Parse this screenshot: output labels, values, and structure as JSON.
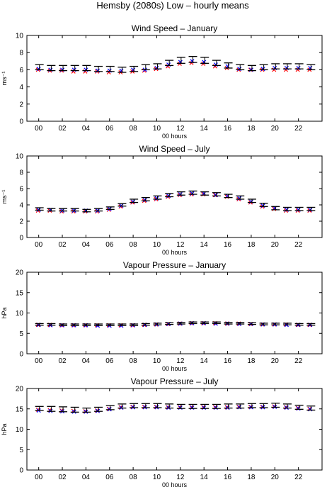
{
  "title": "Hemsby (2080s) Low – hourly means",
  "colors": {
    "series_a": "#ff0000",
    "series_b": "#0000ff",
    "error_bar": "#000000",
    "axes": "#000000",
    "background": "#ffffff"
  },
  "chart_data": [
    {
      "type": "scatter",
      "title": "Wind Speed – January",
      "xlabel": "00 hours",
      "ylabel": "ms⁻¹",
      "x_tick_labels": [
        "00",
        "02",
        "04",
        "06",
        "08",
        "10",
        "12",
        "14",
        "16",
        "18",
        "20",
        "22"
      ],
      "y_tick_labels": [
        "0",
        "2",
        "4",
        "6",
        "8",
        "10"
      ],
      "xlim": [
        -1,
        24
      ],
      "ylim": [
        0,
        10
      ],
      "hours": [
        0,
        1,
        2,
        3,
        4,
        5,
        6,
        7,
        8,
        9,
        10,
        11,
        12,
        13,
        14,
        15,
        16,
        17,
        18,
        19,
        20,
        21,
        22,
        23
      ],
      "series": [
        {
          "color": "red",
          "marker": "x",
          "values": [
            6.0,
            5.9,
            5.9,
            5.8,
            5.8,
            5.8,
            5.7,
            5.7,
            5.8,
            5.9,
            6.1,
            6.4,
            6.7,
            6.8,
            6.7,
            6.4,
            6.2,
            6.0,
            6.0,
            6.0,
            6.0,
            6.0,
            6.0,
            6.0
          ]
        },
        {
          "color": "blue",
          "marker": "x",
          "values": [
            6.1,
            6.0,
            6.0,
            6.0,
            6.0,
            5.9,
            5.9,
            5.9,
            6.0,
            6.0,
            6.2,
            6.6,
            6.9,
            7.0,
            6.9,
            6.6,
            6.4,
            6.1,
            6.0,
            6.1,
            6.2,
            6.2,
            6.2,
            6.2
          ]
        },
        {
          "type": "errorbar",
          "color": "black",
          "values": [
            6.3,
            6.2,
            6.2,
            6.2,
            6.2,
            6.1,
            6.1,
            6.0,
            6.1,
            6.3,
            6.4,
            6.8,
            7.1,
            7.2,
            7.1,
            6.8,
            6.5,
            6.3,
            6.2,
            6.3,
            6.4,
            6.4,
            6.4,
            6.3
          ],
          "error": [
            0.3,
            0.3,
            0.3,
            0.3,
            0.3,
            0.3,
            0.3,
            0.3,
            0.3,
            0.3,
            0.3,
            0.3,
            0.35,
            0.35,
            0.35,
            0.3,
            0.3,
            0.3,
            0.3,
            0.3,
            0.3,
            0.3,
            0.3,
            0.3
          ]
        }
      ]
    },
    {
      "type": "scatter",
      "title": "Wind Speed – July",
      "xlabel": "00 hours",
      "ylabel": "ms⁻¹",
      "x_tick_labels": [
        "00",
        "02",
        "04",
        "06",
        "08",
        "10",
        "12",
        "14",
        "16",
        "18",
        "20",
        "22"
      ],
      "y_tick_labels": [
        "0",
        "2",
        "4",
        "6",
        "8",
        "10"
      ],
      "xlim": [
        -1,
        24
      ],
      "ylim": [
        0,
        10
      ],
      "hours": [
        0,
        1,
        2,
        3,
        4,
        5,
        6,
        7,
        8,
        9,
        10,
        11,
        12,
        13,
        14,
        15,
        16,
        17,
        18,
        19,
        20,
        21,
        22,
        23
      ],
      "series": [
        {
          "color": "red",
          "marker": "x",
          "values": [
            3.3,
            3.3,
            3.2,
            3.2,
            3.2,
            3.2,
            3.4,
            3.8,
            4.3,
            4.5,
            4.7,
            5.0,
            5.2,
            5.3,
            5.3,
            5.2,
            5.0,
            4.7,
            4.3,
            3.8,
            3.5,
            3.3,
            3.3,
            3.3
          ]
        },
        {
          "color": "blue",
          "marker": "x",
          "values": [
            3.4,
            3.4,
            3.3,
            3.3,
            3.3,
            3.3,
            3.5,
            3.9,
            4.4,
            4.6,
            4.8,
            5.1,
            5.3,
            5.4,
            5.4,
            5.2,
            5.1,
            4.8,
            4.4,
            3.9,
            3.6,
            3.4,
            3.4,
            3.4
          ]
        },
        {
          "type": "errorbar",
          "color": "black",
          "values": [
            3.5,
            3.4,
            3.4,
            3.4,
            3.3,
            3.4,
            3.6,
            4.0,
            4.5,
            4.7,
            4.9,
            5.2,
            5.4,
            5.5,
            5.4,
            5.3,
            5.1,
            4.9,
            4.5,
            4.0,
            3.6,
            3.5,
            3.5,
            3.5
          ],
          "error": [
            0.15,
            0.15,
            0.15,
            0.15,
            0.15,
            0.15,
            0.15,
            0.15,
            0.2,
            0.2,
            0.2,
            0.2,
            0.2,
            0.2,
            0.2,
            0.2,
            0.2,
            0.2,
            0.2,
            0.2,
            0.2,
            0.2,
            0.2,
            0.2
          ]
        }
      ]
    },
    {
      "type": "scatter",
      "title": "Vapour Pressure – January",
      "xlabel": "00 hours",
      "ylabel": "hPa",
      "x_tick_labels": [
        "00",
        "02",
        "04",
        "06",
        "08",
        "10",
        "12",
        "14",
        "16",
        "18",
        "20",
        "22"
      ],
      "y_tick_labels": [
        "0",
        "5",
        "10",
        "15",
        "20"
      ],
      "xlim": [
        -1,
        24
      ],
      "ylim": [
        0,
        20
      ],
      "hours": [
        0,
        1,
        2,
        3,
        4,
        5,
        6,
        7,
        8,
        9,
        10,
        11,
        12,
        13,
        14,
        15,
        16,
        17,
        18,
        19,
        20,
        21,
        22,
        23
      ],
      "series": [
        {
          "color": "red",
          "marker": "x",
          "values": [
            7.1,
            7.1,
            7.0,
            7.0,
            7.0,
            7.0,
            7.0,
            7.0,
            7.0,
            7.1,
            7.2,
            7.3,
            7.4,
            7.5,
            7.5,
            7.5,
            7.4,
            7.4,
            7.3,
            7.2,
            7.2,
            7.2,
            7.1,
            7.1
          ]
        },
        {
          "color": "blue",
          "marker": "x",
          "values": [
            7.1,
            7.0,
            7.0,
            7.0,
            7.0,
            6.9,
            6.9,
            6.9,
            7.0,
            7.1,
            7.2,
            7.3,
            7.4,
            7.5,
            7.5,
            7.4,
            7.4,
            7.3,
            7.3,
            7.2,
            7.2,
            7.1,
            7.1,
            7.1
          ]
        },
        {
          "type": "errorbar",
          "color": "black",
          "values": [
            7.2,
            7.2,
            7.1,
            7.1,
            7.1,
            7.1,
            7.1,
            7.1,
            7.1,
            7.2,
            7.3,
            7.4,
            7.5,
            7.6,
            7.6,
            7.6,
            7.5,
            7.5,
            7.4,
            7.3,
            7.3,
            7.3,
            7.2,
            7.2
          ],
          "error": [
            0.2,
            0.2,
            0.2,
            0.2,
            0.2,
            0.2,
            0.2,
            0.2,
            0.2,
            0.2,
            0.2,
            0.2,
            0.2,
            0.2,
            0.2,
            0.2,
            0.2,
            0.2,
            0.2,
            0.2,
            0.2,
            0.2,
            0.2,
            0.2
          ]
        }
      ]
    },
    {
      "type": "scatter",
      "title": "Vapour Pressure – July",
      "xlabel": "00 hours",
      "ylabel": "hPa",
      "x_tick_labels": [
        "00",
        "02",
        "04",
        "06",
        "08",
        "10",
        "12",
        "14",
        "16",
        "18",
        "20",
        "22"
      ],
      "y_tick_labels": [
        "0",
        "5",
        "10",
        "15",
        "20"
      ],
      "xlim": [
        -1,
        24
      ],
      "ylim": [
        0,
        20
      ],
      "hours": [
        0,
        1,
        2,
        3,
        4,
        5,
        6,
        7,
        8,
        9,
        10,
        11,
        12,
        13,
        14,
        15,
        16,
        17,
        18,
        19,
        20,
        21,
        22,
        23
      ],
      "series": [
        {
          "color": "red",
          "marker": "x",
          "values": [
            14.8,
            14.7,
            14.6,
            14.5,
            14.4,
            14.6,
            15.0,
            15.4,
            15.5,
            15.5,
            15.5,
            15.4,
            15.4,
            15.4,
            15.4,
            15.4,
            15.4,
            15.5,
            15.5,
            15.5,
            15.6,
            15.4,
            15.2,
            15.0
          ]
        },
        {
          "color": "blue",
          "marker": "x",
          "values": [
            14.6,
            14.5,
            14.4,
            14.3,
            14.3,
            14.5,
            14.9,
            15.3,
            15.4,
            15.4,
            15.4,
            15.3,
            15.3,
            15.3,
            15.3,
            15.3,
            15.3,
            15.4,
            15.4,
            15.4,
            15.5,
            15.3,
            15.1,
            14.9
          ]
        },
        {
          "type": "errorbar",
          "color": "black",
          "values": [
            15.1,
            15.0,
            14.9,
            14.8,
            14.7,
            14.9,
            15.3,
            15.7,
            15.8,
            15.8,
            15.8,
            15.7,
            15.6,
            15.6,
            15.6,
            15.6,
            15.7,
            15.7,
            15.8,
            15.8,
            15.9,
            15.7,
            15.4,
            15.2
          ],
          "error": [
            0.5,
            0.6,
            0.6,
            0.6,
            0.5,
            0.5,
            0.5,
            0.5,
            0.5,
            0.5,
            0.5,
            0.5,
            0.5,
            0.5,
            0.5,
            0.5,
            0.5,
            0.5,
            0.5,
            0.5,
            0.5,
            0.5,
            0.5,
            0.5
          ]
        }
      ]
    }
  ]
}
